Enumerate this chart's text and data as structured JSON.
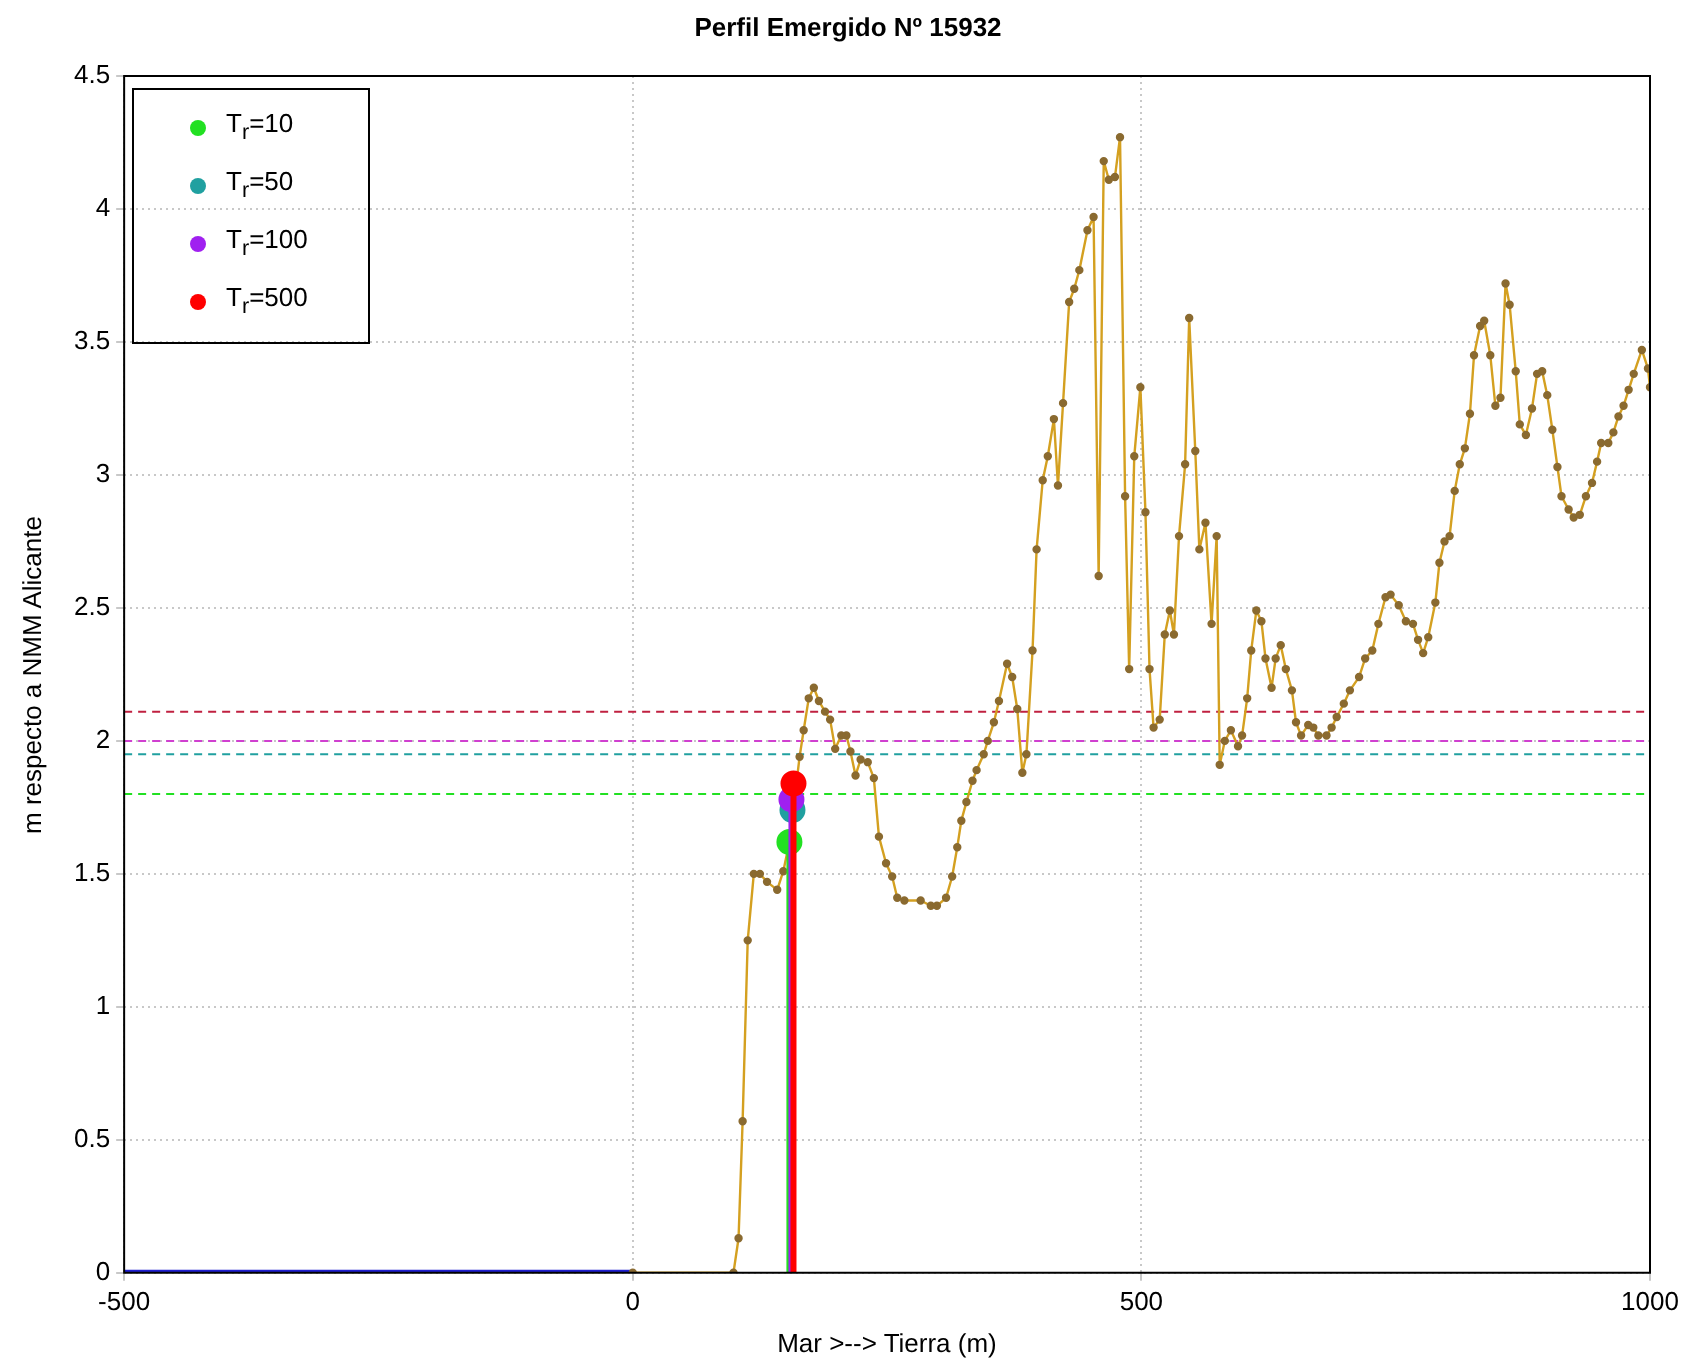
{
  "chart_data": {
    "type": "line",
    "title": "Perfil Emergido Nº 15932",
    "xlabel": "Mar >--> Tierra (m)",
    "ylabel": "m respecto a NMM Alicante",
    "xlim": [
      -500,
      1000
    ],
    "xticks": [
      -500,
      0,
      500,
      1000
    ],
    "ylim": [
      0,
      4.5
    ],
    "yticks": [
      0,
      0.5,
      1,
      1.5,
      2,
      2.5,
      3,
      3.5,
      4,
      4.5
    ],
    "grid": true,
    "legend": "top left",
    "series": [
      {
        "color": "#1f1fd0",
        "x": [
          -500,
          0
        ],
        "values": [
          0,
          0
        ]
      },
      {
        "color": "#d4a020",
        "marker": "circle",
        "x": [
          0,
          99,
          104,
          108,
          113,
          119,
          125,
          132,
          142,
          148,
          154,
          164,
          168,
          173,
          178,
          183,
          189,
          194,
          199,
          205,
          210,
          214,
          219,
          224,
          231,
          237,
          242,
          249,
          255,
          260,
          267,
          283,
          293,
          299,
          308,
          314,
          319,
          323,
          328,
          334,
          338,
          345,
          349,
          355,
          360,
          368,
          373,
          378,
          383,
          387,
          393,
          397,
          403,
          408,
          414,
          418,
          423,
          429,
          434,
          439,
          447,
          453,
          458,
          463,
          468,
          474,
          479,
          484,
          488,
          493,
          499,
          504,
          508,
          512,
          518,
          523,
          528,
          532,
          537,
          543,
          547,
          553,
          557,
          563,
          569,
          574,
          577,
          582,
          588,
          595,
          599,
          604,
          608,
          613,
          618,
          622,
          628,
          632,
          637,
          642,
          648,
          652,
          657,
          664,
          669,
          674,
          682,
          687,
          692,
          699,
          705,
          714,
          720,
          727,
          733,
          740,
          745,
          753,
          760,
          767,
          772,
          777,
          782,
          789,
          793,
          798,
          803,
          808,
          813,
          818,
          823,
          827,
          833,
          837,
          843,
          848,
          853,
          858,
          862,
          868,
          872,
          878,
          884,
          889,
          894,
          899,
          904,
          909,
          913,
          920,
          925,
          931,
          937,
          943,
          948,
          952,
          959,
          964,
          969,
          974,
          979,
          984,
          992,
          998,
          1000
        ],
        "values": [
          0,
          0,
          0.13,
          0.57,
          1.25,
          1.5,
          1.5,
          1.47,
          1.44,
          1.51,
          1.62,
          1.94,
          2.04,
          2.16,
          2.2,
          2.15,
          2.11,
          2.08,
          1.97,
          2.02,
          2.02,
          1.96,
          1.87,
          1.93,
          1.92,
          1.86,
          1.64,
          1.54,
          1.49,
          1.41,
          1.4,
          1.4,
          1.38,
          1.38,
          1.41,
          1.49,
          1.6,
          1.7,
          1.77,
          1.85,
          1.89,
          1.95,
          2.0,
          2.07,
          2.15,
          2.29,
          2.24,
          2.12,
          1.88,
          1.95,
          2.34,
          2.72,
          2.98,
          3.07,
          3.21,
          2.96,
          3.27,
          3.65,
          3.7,
          3.77,
          3.92,
          3.97,
          2.62,
          4.18,
          4.11,
          4.12,
          4.27,
          2.92,
          2.27,
          3.07,
          3.33,
          2.86,
          2.27,
          2.05,
          2.08,
          2.4,
          2.49,
          2.4,
          2.77,
          3.04,
          3.59,
          3.09,
          2.72,
          2.82,
          2.44,
          2.77,
          1.91,
          2.0,
          2.04,
          1.98,
          2.02,
          2.16,
          2.34,
          2.49,
          2.45,
          2.31,
          2.2,
          2.31,
          2.36,
          2.27,
          2.19,
          2.07,
          2.02,
          2.06,
          2.05,
          2.02,
          2.02,
          2.05,
          2.09,
          2.14,
          2.19,
          2.24,
          2.31,
          2.34,
          2.44,
          2.54,
          2.55,
          2.51,
          2.45,
          2.44,
          2.38,
          2.33,
          2.39,
          2.52,
          2.67,
          2.75,
          2.77,
          2.94,
          3.04,
          3.1,
          3.23,
          3.45,
          3.56,
          3.58,
          3.45,
          3.26,
          3.29,
          3.72,
          3.64,
          3.39,
          3.19,
          3.15,
          3.25,
          3.38,
          3.39,
          3.3,
          3.17,
          3.03,
          2.92,
          2.87,
          2.84,
          2.85,
          2.92,
          2.97,
          3.05,
          3.12,
          3.12,
          3.16,
          3.22,
          3.26,
          3.32,
          3.38,
          3.47,
          3.4,
          3.33
        ]
      },
      {
        "type": "lollipop",
        "name": "T$_{r}$=10",
        "color": "#22e022",
        "x": [
          154
        ],
        "values": [
          1.62
        ]
      },
      {
        "type": "lollipop",
        "name": "T$_{r}$=50",
        "color": "#20a0a0",
        "x": [
          157
        ],
        "values": [
          1.74
        ]
      },
      {
        "type": "lollipop",
        "name": "T$_{r}$=100",
        "color": "#a020f0",
        "x": [
          156
        ],
        "values": [
          1.78
        ]
      },
      {
        "type": "lollipop",
        "name": "T$_{r}$=500",
        "color": "#ff0000",
        "x": [
          158
        ],
        "values": [
          1.84
        ]
      }
    ],
    "ref_lines": [
      {
        "axis": "y",
        "value": 1.8,
        "color": "#22e022",
        "line_style": "dashed"
      },
      {
        "axis": "y",
        "value": 1.95,
        "color": "#20a0a0",
        "line_style": "dashed"
      },
      {
        "axis": "y",
        "value": 2.0,
        "color": "#d040d0",
        "line_style": "dashed"
      },
      {
        "axis": "y",
        "value": 2.11,
        "color": "#c02040",
        "line_style": "dashed"
      }
    ]
  }
}
